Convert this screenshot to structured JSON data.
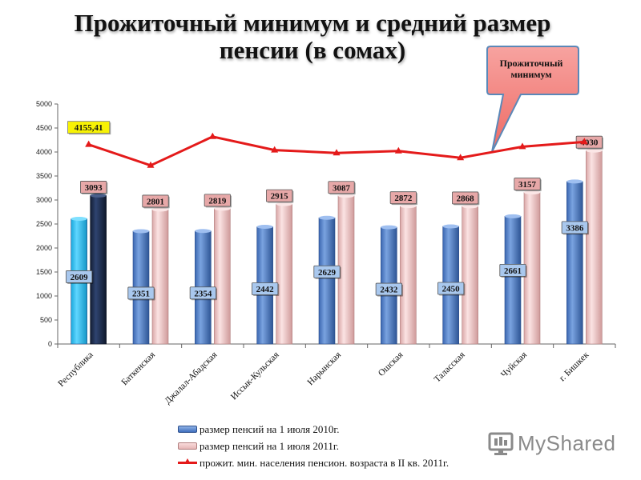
{
  "slide": {
    "title_line1": "Прожиточный минимум и средний размер",
    "title_line2": "пенсии (в сомах)",
    "callout_line1": "Прожиточный",
    "callout_line2": "минимум",
    "logo_text": "MyShared"
  },
  "legend": [
    {
      "label": "размер пенсий на 1 июля 2010г."
    },
    {
      "label": "размер пенсий на 1 июля 2011г."
    },
    {
      "label": "прожит. мин. населения пенсион. возраста в II кв. 2011г."
    }
  ],
  "chart_data": {
    "type": "bar",
    "categories": [
      "Республика",
      "Баткенская",
      "Джалал-Абадская",
      "Иссык-Кульская",
      "Нарынская",
      "Ошская",
      "Таласская",
      "Чуйская",
      "г. Бишкек"
    ],
    "series": [
      {
        "name": "размер пенсий на 1 июля 2010г.",
        "type": "bar",
        "color": "#4a7bc8",
        "values": [
          2609,
          2351,
          2354,
          2442,
          2629,
          2432,
          2450,
          2661,
          3386
        ],
        "labels": [
          "2609",
          "2351",
          "2354",
          "2442",
          "2629",
          "2432",
          "2450",
          "2661",
          "3386"
        ]
      },
      {
        "name": "размер пенсий на 1 июля 2011г.",
        "type": "bar",
        "color": "#f2c6c6",
        "values": [
          3093,
          2801,
          2819,
          2915,
          3087,
          2872,
          2868,
          3157,
          4030
        ],
        "labels": [
          "3093",
          "2801",
          "2819",
          "2915",
          "3087",
          "2872",
          "2868",
          "3157",
          "4030"
        ]
      },
      {
        "name": "прожит. мин. населения пенсион. возраста в II кв. 2011г.",
        "type": "line",
        "color": "#e41a1a",
        "values": [
          4155.41,
          3720,
          4320,
          4040,
          3980,
          4020,
          3880,
          4110,
          4210
        ],
        "labels": [
          "4155,41",
          "",
          "",
          "",
          "",
          "",
          "",
          "",
          ""
        ]
      }
    ],
    "highlight_colors": {
      "republic_2010": "#29c0f0",
      "republic_2011": "#1b2a48"
    },
    "ylim": [
      0,
      5000
    ],
    "yticks": [
      "0",
      "500",
      "1000",
      "1500",
      "2000",
      "2500",
      "3000",
      "3500",
      "4000",
      "4500",
      "5000"
    ],
    "grid": false,
    "legend_position": "bottom",
    "title": "Прожиточный минимум и средний размер пенсии (в сомах)",
    "xlabel": "",
    "ylabel": ""
  }
}
